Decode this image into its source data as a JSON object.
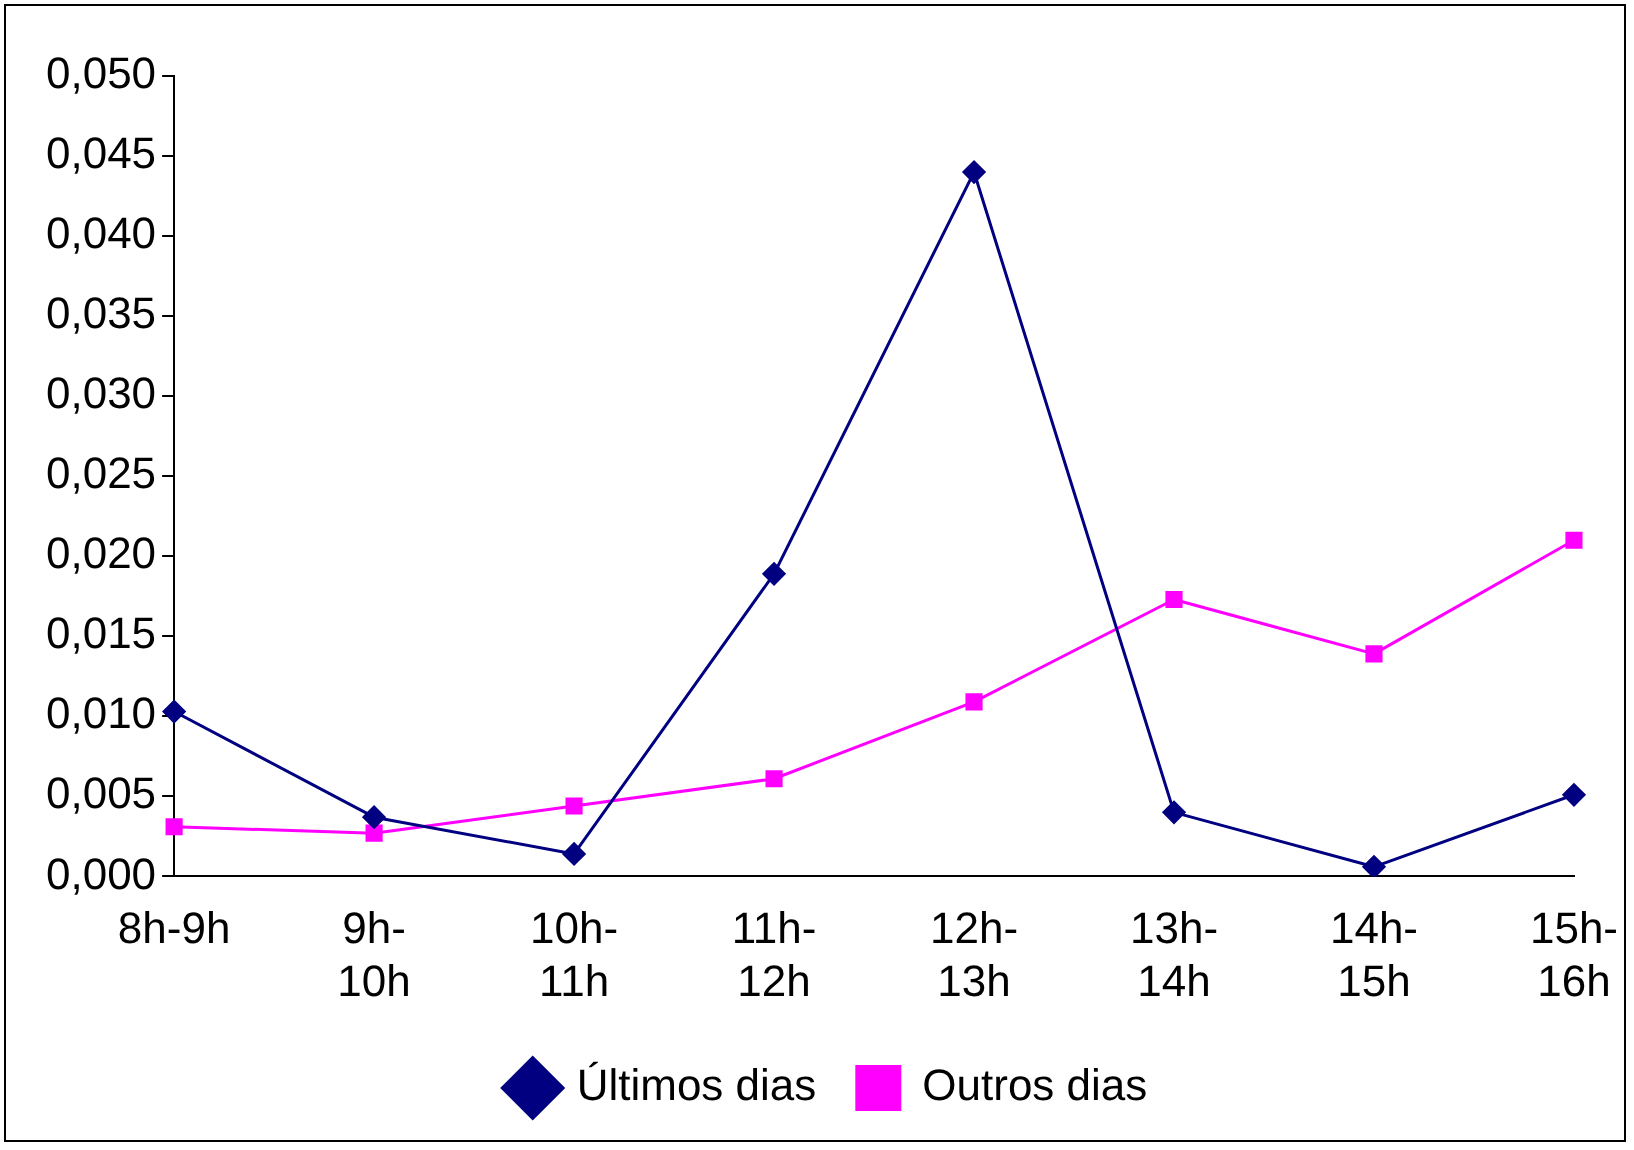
{
  "chart_data": {
    "type": "line",
    "categories": [
      "8h-9h",
      "9h-10h",
      "10h-11h",
      "11h-12h",
      "12h-13h",
      "13h-14h",
      "14h-15h",
      "15h-16h"
    ],
    "series": [
      {
        "name": "Últimos dias",
        "color": "#000080",
        "marker": "diamond",
        "values": [
          0.0103,
          0.0037,
          0.0014,
          0.0189,
          0.044,
          0.004,
          0.0006,
          0.0051
        ]
      },
      {
        "name": "Outros dias",
        "color": "#ff00ff",
        "marker": "square",
        "values": [
          0.0031,
          0.0027,
          0.0044,
          0.0061,
          0.0109,
          0.0173,
          0.0139,
          0.021
        ]
      }
    ],
    "ylim": [
      0,
      0.05
    ],
    "yticks": [
      {
        "value": 0,
        "label": "0,000"
      },
      {
        "value": 0.005,
        "label": "0,005"
      },
      {
        "value": 0.01,
        "label": "0,010"
      },
      {
        "value": 0.015,
        "label": "0,015"
      },
      {
        "value": 0.02,
        "label": "0,020"
      },
      {
        "value": 0.025,
        "label": "0,025"
      },
      {
        "value": 0.03,
        "label": "0,030"
      },
      {
        "value": 0.035,
        "label": "0,035"
      },
      {
        "value": 0.04,
        "label": "0,040"
      },
      {
        "value": 0.045,
        "label": "0,045"
      },
      {
        "value": 0.05,
        "label": "0,050"
      }
    ],
    "grid": false,
    "legend": "bottom",
    "line_style": "solid"
  }
}
